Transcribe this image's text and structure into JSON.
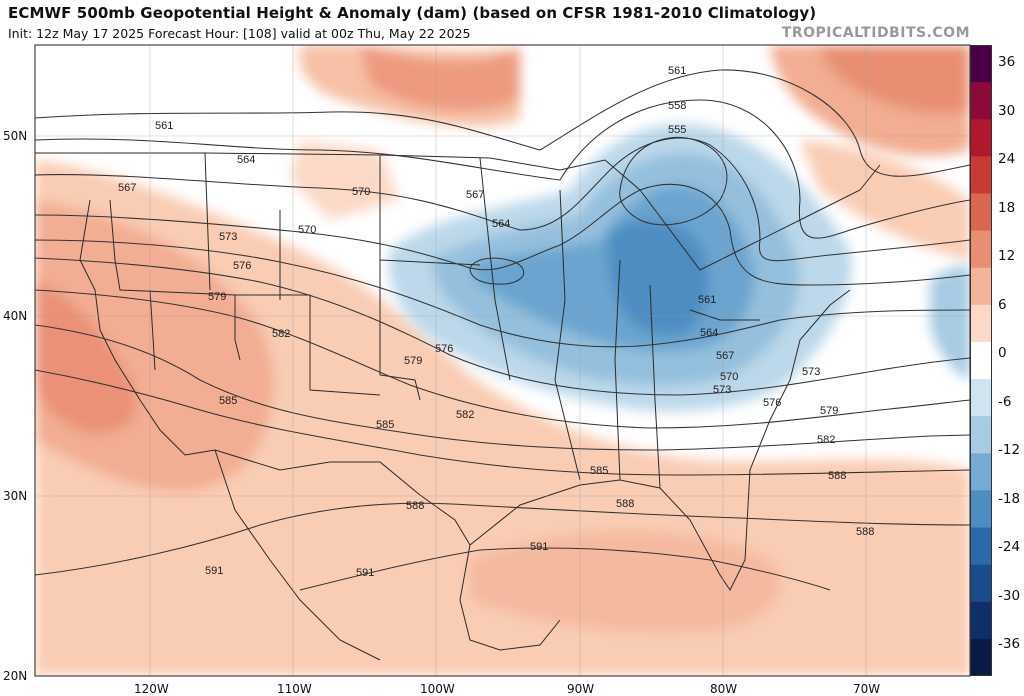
{
  "header": {
    "title": "ECMWF 500mb Geopotential Height & Anomaly (dam) (based on CFSR 1981-2010 Climatology)",
    "subtitle": "Init: 12z May 17 2025   Forecast Hour: [108]   valid at 00z Thu, May 22 2025",
    "brand": "TROPICALTIDBITS.COM"
  },
  "map": {
    "lat_labels": [
      "50N",
      "40N",
      "30N",
      "20N"
    ],
    "lon_labels": [
      "120W",
      "110W",
      "100W",
      "90W",
      "80W",
      "70W"
    ],
    "contour_labels": [
      "561",
      "564",
      "567",
      "570",
      "573",
      "576",
      "579",
      "582",
      "585",
      "588",
      "591",
      "561",
      "564",
      "567",
      "570",
      "573",
      "576",
      "579",
      "582",
      "585",
      "588",
      "591",
      "555",
      "558",
      "561",
      "564",
      "567",
      "570",
      "573",
      "576",
      "579",
      "582",
      "585",
      "588",
      "588",
      "591"
    ]
  },
  "colorbar": {
    "ticks": [
      "36",
      "30",
      "24",
      "18",
      "12",
      "6",
      "0",
      "-6",
      "-12",
      "-18",
      "-24",
      "-30",
      "-36"
    ],
    "colors": [
      "#4a0045",
      "#8c0a3a",
      "#b0182e",
      "#c83a35",
      "#d9674f",
      "#e88e72",
      "#f4b49a",
      "#fbd9c6",
      "#ffffff",
      "#cfe3f0",
      "#a6cbe3",
      "#75abd3",
      "#4d8dc1",
      "#2b6aa9",
      "#1a4b8b",
      "#0f2f68",
      "#0a1a45"
    ]
  }
}
